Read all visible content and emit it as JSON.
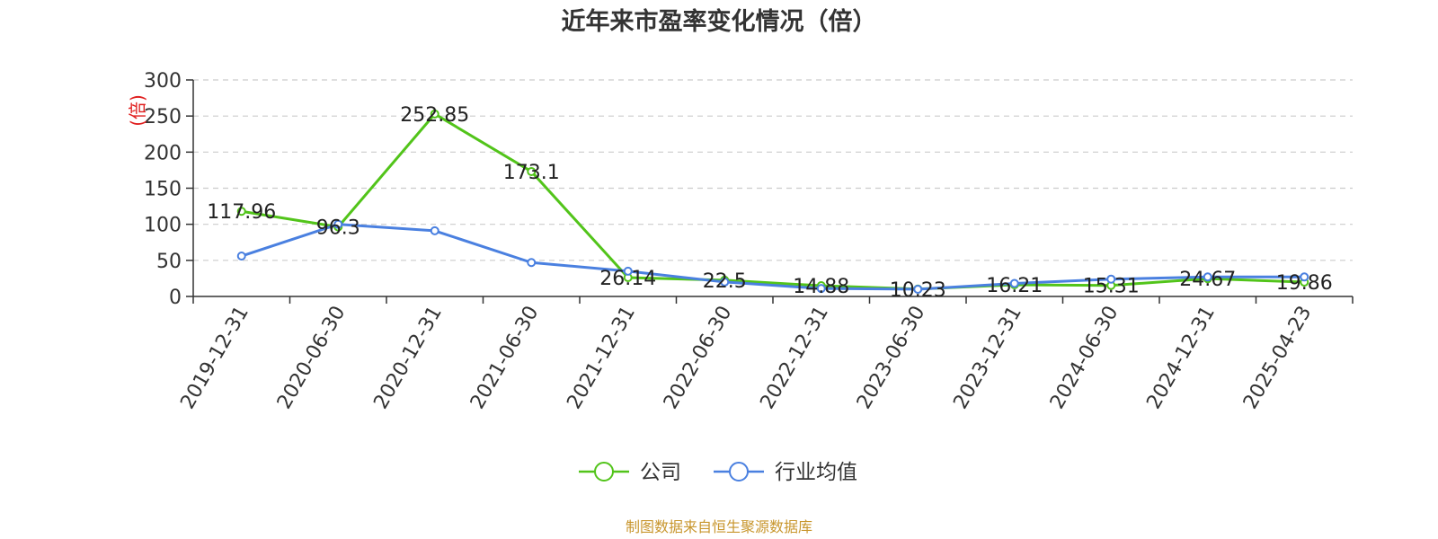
{
  "chart_data": {
    "type": "line",
    "title": "近年来市盈率变化情况（倍）",
    "ylabel": "(倍)",
    "xlabel": "",
    "ylim": [
      0,
      300
    ],
    "yticks": [
      0,
      50,
      100,
      150,
      200,
      250,
      300
    ],
    "grid": true,
    "legend_position": "bottom-center",
    "categories": [
      "2019-12-31",
      "2020-06-30",
      "2020-12-31",
      "2021-06-30",
      "2021-12-31",
      "2022-06-30",
      "2022-12-31",
      "2023-06-30",
      "2023-12-31",
      "2024-06-30",
      "2024-12-31",
      "2025-04-23"
    ],
    "series": [
      {
        "name": "公司",
        "color": "#52c41a",
        "values": [
          117.96,
          96.3,
          252.85,
          173.1,
          26.14,
          22.5,
          14.88,
          10.23,
          16.21,
          15.31,
          24.67,
          19.86
        ],
        "data_labels": [
          "117.96",
          "96.3",
          "252.85",
          "173.1",
          "26.14",
          "22.5",
          "14.88",
          "10.23",
          "16.21",
          "15.31",
          "24.67",
          "19.86"
        ]
      },
      {
        "name": "行业均值",
        "color": "#4a80e0",
        "values": [
          56,
          100,
          91,
          47,
          35,
          20,
          11,
          10,
          18,
          24,
          27,
          27
        ]
      }
    ]
  },
  "colors": {
    "ylabel": "#e02020",
    "source": "#c8962d",
    "grid": "#cccccc",
    "axis": "#333333"
  },
  "footer": {
    "source": "制图数据来自恒生聚源数据库"
  }
}
